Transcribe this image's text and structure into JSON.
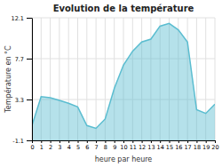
{
  "chart_data": {
    "type": "area",
    "title": "Evolution de la température",
    "xlabel": "heure par heure",
    "ylabel": "Température en °C",
    "x": [
      0,
      1,
      2,
      3,
      4,
      5,
      6,
      7,
      8,
      9,
      10,
      11,
      12,
      13,
      14,
      15,
      16,
      17,
      18,
      19,
      20
    ],
    "values": [
      0.5,
      3.6,
      3.5,
      3.2,
      2.9,
      2.5,
      0.5,
      0.2,
      1.2,
      4.5,
      7.0,
      8.5,
      9.5,
      9.8,
      11.2,
      11.5,
      10.8,
      9.5,
      2.2,
      1.8,
      2.8
    ],
    "color": "#5bbdd0",
    "xlim": [
      0,
      20
    ],
    "xticks": [
      0,
      1,
      2,
      3,
      4,
      5,
      6,
      7,
      8,
      9,
      10,
      11,
      12,
      13,
      14,
      15,
      16,
      17,
      18,
      19,
      20
    ],
    "ylim": [
      -1.1,
      12.1
    ],
    "yticks": [
      -1.1,
      3.3,
      7.7,
      12.1
    ],
    "grid": true
  }
}
